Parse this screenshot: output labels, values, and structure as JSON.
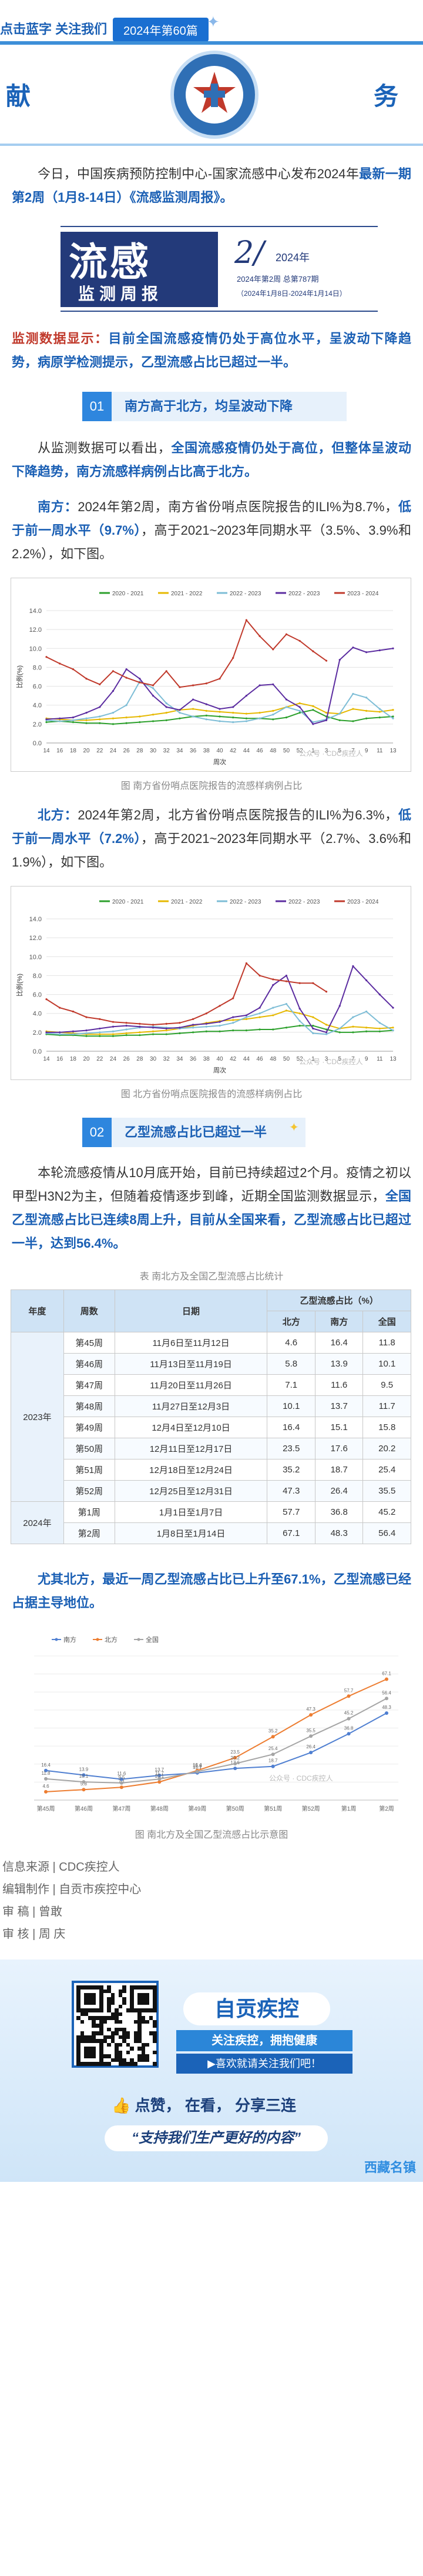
{
  "header": {
    "follow": "点击蓝字 关注我们",
    "issue": "2024年第60篇",
    "banner_left": "献",
    "banner_right": "务"
  },
  "intro": {
    "p1_pre": "今日，中国疾病预防控制中心-国家流感中心发布2024年",
    "p1_bold": "最新一期第2周（1月8-14日）《流感监测周报》。"
  },
  "logo": {
    "big": "流感",
    "sub": "监测周报",
    "no": "2/",
    "yr": "2024年",
    "l1": "2024年第2周  总第787期",
    "l2": "（2024年1月8日-2024年1月14日）"
  },
  "monitor": {
    "red": "监测数据显示：",
    "blue": "目前全国流感疫情仍处于高位水平，呈波动下降趋势，病原学检测提示，乙型流感占比已超过一半。"
  },
  "section1": {
    "num": "01",
    "title": "南方高于北方，均呈波动下降"
  },
  "p2": {
    "pre": "从监测数据可以看出，",
    "bold": "全国流感疫情仍处于高位，但整体呈波动下降趋势，南方流感样病例占比高于北方。"
  },
  "south": {
    "label": "南方：",
    "pre": "2024年第2周，南方省份哨点医院报告的ILI%为8.7%，",
    "bold": "低于前一周水平（9.7%）",
    "post": "，高于2021~2023年同期水平（3.5%、3.9%和2.2%），如下图。"
  },
  "north": {
    "label": "北方：",
    "pre": "2024年第2周，北方省份哨点医院报告的ILI%为6.3%，",
    "bold": "低于前一周水平（7.2%）",
    "post": "，高于2021~2023年同期水平（2.7%、3.6%和1.9%），如下图。"
  },
  "chart1_caption": "图 南方省份哨点医院报告的流感样病例占比",
  "chart2_caption": "图 北方省份哨点医院报告的流感样病例占比",
  "chart3_caption": "图 南北方及全国乙型流感占比示意图",
  "section2": {
    "num": "02",
    "title": "乙型流感占比已超过一半"
  },
  "p3": {
    "pre": "本轮流感疫情从10月底开始，目前已持续超过2个月。疫情之初以甲型H3N2为主，但随着疫情逐步到峰，近期全国监测数据显示，",
    "bold": "全国乙型流感占比已连续8周上升，目前从全国来看，乙型流感占比已超过一半，达到56.4%。"
  },
  "table": {
    "caption": "表 南北方及全国乙型流感占比统计",
    "h_year": "年度",
    "h_week": "周数",
    "h_date": "日期",
    "h_share": "乙型流感占比（%）",
    "h_north": "北方",
    "h_south": "南方",
    "h_nation": "全国",
    "rows": [
      {
        "year": "2023年",
        "week": "第45周",
        "date": "11月6日至11月12日",
        "n": "4.6",
        "s": "16.4",
        "c": "11.8"
      },
      {
        "year": "",
        "week": "第46周",
        "date": "11月13日至11月19日",
        "n": "5.8",
        "s": "13.9",
        "c": "10.1"
      },
      {
        "year": "",
        "week": "第47周",
        "date": "11月20日至11月26日",
        "n": "7.1",
        "s": "11.6",
        "c": "9.5"
      },
      {
        "year": "",
        "week": "第48周",
        "date": "11月27日至12月3日",
        "n": "10.1",
        "s": "13.7",
        "c": "11.7"
      },
      {
        "year": "",
        "week": "第49周",
        "date": "12月4日至12月10日",
        "n": "16.4",
        "s": "15.1",
        "c": "15.8"
      },
      {
        "year": "",
        "week": "第50周",
        "date": "12月11日至12月17日",
        "n": "23.5",
        "s": "17.6",
        "c": "20.2"
      },
      {
        "year": "",
        "week": "第51周",
        "date": "12月18日至12月24日",
        "n": "35.2",
        "s": "18.7",
        "c": "25.4"
      },
      {
        "year": "",
        "week": "第52周",
        "date": "12月25日至12月31日",
        "n": "47.3",
        "s": "26.4",
        "c": "35.5"
      },
      {
        "year": "2024年",
        "week": "第1周",
        "date": "1月1日至1月7日",
        "n": "57.7",
        "s": "36.8",
        "c": "45.2"
      },
      {
        "year": "",
        "week": "第2周",
        "date": "1月8日至1月14日",
        "n": "67.1",
        "s": "48.3",
        "c": "56.4"
      }
    ]
  },
  "p4": "尤其北方，最近一周乙型流感占比已上升至67.1%，乙型流感已经占据主导地位。",
  "sign": {
    "src": "信息来源 | CDC疾控人",
    "edit": "编辑制作 | 自贡市疾控中心",
    "review1_label": "审    稿",
    "review1": "| 曾敢",
    "review2_label": "审    核",
    "review2": "| 周  庆"
  },
  "footer": {
    "title": "自贡疾控",
    "line1": "关注疾控，拥抱健康",
    "line2": "▶喜欢就请关注我们吧！",
    "actions": "点赞，  在看，  分享三连",
    "slogan": "“支持我们生产更好的内容”",
    "mark": "西藏名镇"
  },
  "watermark": "公众号 · CDC疾控人",
  "chart_data": [
    {
      "type": "line",
      "ylabel": "比例(%)",
      "xlabel": "周次",
      "ylim": [
        0,
        14
      ],
      "yticks": [
        0,
        2,
        4,
        6,
        8,
        10,
        12,
        14
      ],
      "x": [
        "14",
        "16",
        "18",
        "20",
        "22",
        "24",
        "26",
        "28",
        "30",
        "32",
        "34",
        "36",
        "38",
        "40",
        "42",
        "44",
        "46",
        "48",
        "50",
        "52",
        "1",
        "3",
        "5",
        "7",
        "9",
        "11",
        "13"
      ],
      "series": [
        {
          "name": "2020 - 2021",
          "color": "#2ca02c",
          "values": [
            2.2,
            2.3,
            2.2,
            2.1,
            2.1,
            2.0,
            2.1,
            2.2,
            2.3,
            2.4,
            2.6,
            2.8,
            2.9,
            2.8,
            2.7,
            2.6,
            2.6,
            2.5,
            2.7,
            3.2,
            3.5,
            2.8,
            2.4,
            2.3,
            2.6,
            2.7,
            2.8
          ]
        },
        {
          "name": "2021 - 2022",
          "color": "#e6b800",
          "values": [
            2.6,
            2.5,
            2.4,
            2.4,
            2.5,
            2.6,
            2.7,
            2.8,
            3.0,
            3.2,
            3.5,
            3.6,
            3.4,
            3.3,
            3.2,
            3.1,
            3.2,
            3.4,
            3.8,
            4.2,
            3.9,
            3.2,
            3.1,
            3.6,
            3.4,
            3.3,
            3.5
          ]
        },
        {
          "name": "2022 - 2023",
          "color": "#7dbdd6",
          "values": [
            2.4,
            2.3,
            2.4,
            2.6,
            2.8,
            3.2,
            4.0,
            6.5,
            5.8,
            4.2,
            3.2,
            2.8,
            2.5,
            2.3,
            2.2,
            2.3,
            2.6,
            3.0,
            3.8,
            3.4,
            2.2,
            2.5,
            3.1,
            5.2,
            4.8,
            3.6,
            2.6
          ]
        },
        {
          "name": "2022 - 2023",
          "color": "#5b2ca0",
          "values": [
            2.5,
            2.6,
            2.7,
            3.2,
            3.8,
            5.5,
            7.8,
            6.8,
            5.0,
            3.8,
            3.5,
            4.6,
            4.1,
            3.6,
            3.8,
            5.0,
            6.1,
            6.2,
            4.6,
            3.8,
            2.0,
            2.4,
            8.8,
            10.1,
            9.6,
            9.8,
            10.0
          ]
        },
        {
          "name": "2023 - 2024",
          "color": "#c0392b",
          "values": [
            9.1,
            8.4,
            7.8,
            6.8,
            6.2,
            7.6,
            6.9,
            6.4,
            6.1,
            7.6,
            5.9,
            6.1,
            6.3,
            6.8,
            9.0,
            13.0,
            11.3,
            9.9,
            11.5,
            10.8,
            9.7,
            8.7,
            null,
            null,
            null,
            null,
            null
          ]
        }
      ]
    },
    {
      "type": "line",
      "ylabel": "比例(%)",
      "xlabel": "周次",
      "ylim": [
        0,
        14
      ],
      "yticks": [
        0,
        2,
        4,
        6,
        8,
        10,
        12,
        14
      ],
      "x": [
        "14",
        "16",
        "18",
        "20",
        "22",
        "24",
        "26",
        "28",
        "30",
        "32",
        "34",
        "36",
        "38",
        "40",
        "42",
        "44",
        "46",
        "48",
        "50",
        "52",
        "1",
        "3",
        "5",
        "7",
        "9",
        "11",
        "13"
      ],
      "series": [
        {
          "name": "2020 - 2021",
          "color": "#2ca02c",
          "values": [
            1.8,
            1.7,
            1.7,
            1.6,
            1.6,
            1.6,
            1.7,
            1.7,
            1.8,
            1.8,
            1.9,
            2.0,
            2.1,
            2.1,
            2.2,
            2.2,
            2.3,
            2.3,
            2.5,
            2.7,
            2.7,
            2.3,
            2.0,
            2.0,
            2.1,
            2.1,
            2.2
          ]
        },
        {
          "name": "2021 - 2022",
          "color": "#e6b800",
          "values": [
            2.1,
            2.0,
            1.9,
            1.8,
            1.8,
            1.8,
            1.9,
            2.0,
            2.1,
            2.2,
            2.4,
            2.7,
            3.0,
            3.2,
            3.3,
            3.4,
            3.6,
            3.8,
            4.3,
            4.0,
            3.6,
            2.8,
            2.4,
            2.6,
            2.5,
            2.4,
            2.5
          ]
        },
        {
          "name": "2022 - 2023",
          "color": "#7dbdd6",
          "values": [
            1.9,
            1.8,
            1.8,
            1.9,
            2.0,
            2.1,
            2.3,
            2.5,
            2.6,
            2.5,
            2.4,
            2.5,
            2.6,
            2.7,
            3.0,
            3.6,
            4.0,
            4.6,
            5.0,
            3.2,
            1.9,
            1.8,
            2.4,
            3.6,
            4.2,
            3.0,
            2.2
          ]
        },
        {
          "name": "2022 - 2023",
          "color": "#5b2ca0",
          "values": [
            2.0,
            2.0,
            2.1,
            2.2,
            2.4,
            2.6,
            2.7,
            2.6,
            2.5,
            2.4,
            2.5,
            2.8,
            2.9,
            3.1,
            3.6,
            3.8,
            4.6,
            7.0,
            8.0,
            4.5,
            2.4,
            2.0,
            4.8,
            9.0,
            7.5,
            6.0,
            4.6
          ]
        },
        {
          "name": "2023 - 2024",
          "color": "#c0392b",
          "values": [
            5.5,
            4.6,
            4.2,
            3.6,
            3.4,
            3.1,
            3.0,
            2.9,
            2.8,
            2.9,
            3.0,
            3.4,
            4.0,
            4.8,
            5.6,
            9.3,
            8.0,
            7.6,
            7.4,
            7.2,
            7.2,
            6.3,
            null,
            null,
            null,
            null,
            null
          ]
        }
      ]
    },
    {
      "type": "line",
      "ylim": [
        0,
        80
      ],
      "x": [
        "第45周",
        "第46周",
        "第47周",
        "第48周",
        "第49周",
        "第50周",
        "第51周",
        "第52周",
        "第1周",
        "第2周"
      ],
      "series": [
        {
          "name": "南方",
          "color": "#4f7fd1",
          "values": [
            16.4,
            13.9,
            11.6,
            13.7,
            15.1,
            17.6,
            18.7,
            26.4,
            36.8,
            48.3
          ]
        },
        {
          "name": "北方",
          "color": "#ed7d31",
          "values": [
            4.6,
            5.8,
            7.1,
            10.1,
            16.4,
            23.5,
            35.2,
            47.3,
            57.7,
            67.1
          ]
        },
        {
          "name": "全国",
          "color": "#a5a5a5",
          "values": [
            11.8,
            10.1,
            9.5,
            11.7,
            15.8,
            20.2,
            25.4,
            35.5,
            45.2,
            56.4
          ]
        }
      ]
    }
  ]
}
